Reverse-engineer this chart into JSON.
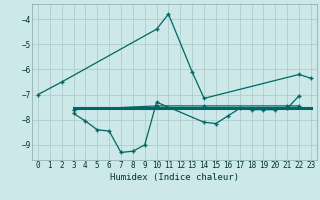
{
  "xlabel": "Humidex (Indice chaleur)",
  "bg_color": "#cce8e8",
  "grid_color": "#b0cccc",
  "line_color": "#006666",
  "xlim": [
    -0.5,
    23.5
  ],
  "ylim": [
    -9.6,
    -3.4
  ],
  "yticks": [
    -9,
    -8,
    -7,
    -6,
    -5,
    -4
  ],
  "xticks": [
    0,
    1,
    2,
    3,
    4,
    5,
    6,
    7,
    8,
    9,
    10,
    11,
    12,
    13,
    14,
    15,
    16,
    17,
    18,
    19,
    20,
    21,
    22,
    23
  ],
  "line1_x": [
    0,
    2,
    10,
    11,
    13,
    14,
    22,
    23
  ],
  "line1_y": [
    -7.0,
    -6.5,
    -4.4,
    -3.8,
    -6.1,
    -7.15,
    -6.2,
    -6.35
  ],
  "line2_x": [
    3,
    4,
    5,
    6,
    7,
    8,
    9,
    10,
    14,
    15,
    16,
    17,
    18,
    19,
    20,
    21,
    22
  ],
  "line2_y": [
    -7.75,
    -8.05,
    -8.4,
    -8.45,
    -9.3,
    -9.25,
    -9.0,
    -7.3,
    -8.1,
    -8.15,
    -7.85,
    -7.55,
    -7.6,
    -7.6,
    -7.6,
    -7.55,
    -7.05
  ],
  "line3_x": [
    3,
    23
  ],
  "line3_y": [
    -7.55,
    -7.55
  ],
  "line4_x": [
    3,
    10,
    14,
    21,
    22
  ],
  "line4_y": [
    -7.6,
    -7.45,
    -7.45,
    -7.45,
    -7.45
  ]
}
